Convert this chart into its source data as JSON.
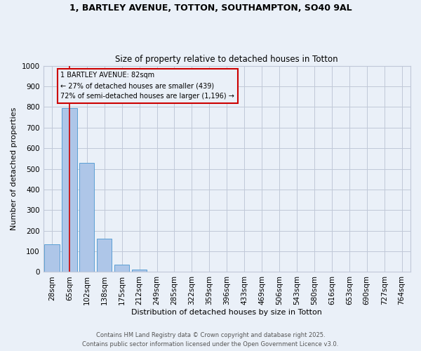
{
  "title_line1": "1, BARTLEY AVENUE, TOTTON, SOUTHAMPTON, SO40 9AL",
  "title_line2": "Size of property relative to detached houses in Totton",
  "xlabel": "Distribution of detached houses by size in Totton",
  "ylabel": "Number of detached properties",
  "categories": [
    "28sqm",
    "65sqm",
    "102sqm",
    "138sqm",
    "175sqm",
    "212sqm",
    "249sqm",
    "285sqm",
    "322sqm",
    "359sqm",
    "396sqm",
    "433sqm",
    "469sqm",
    "506sqm",
    "543sqm",
    "580sqm",
    "616sqm",
    "653sqm",
    "690sqm",
    "727sqm",
    "764sqm"
  ],
  "values": [
    135,
    795,
    530,
    160,
    37,
    12,
    0,
    0,
    0,
    0,
    0,
    0,
    0,
    0,
    0,
    0,
    0,
    0,
    0,
    0,
    0
  ],
  "bar_color": "#aec6e8",
  "bar_edge_color": "#5a9fd4",
  "grid_color": "#c0c8d8",
  "bg_color": "#eaf0f8",
  "red_line_x": 1,
  "annotation_box_text": "1 BARTLEY AVENUE: 82sqm\n← 27% of detached houses are smaller (439)\n72% of semi-detached houses are larger (1,196) →",
  "annotation_box_color": "#cc0000",
  "footer_line1": "Contains HM Land Registry data © Crown copyright and database right 2025.",
  "footer_line2": "Contains public sector information licensed under the Open Government Licence v3.0.",
  "ylim": [
    0,
    1000
  ],
  "yticks": [
    0,
    100,
    200,
    300,
    400,
    500,
    600,
    700,
    800,
    900,
    1000
  ]
}
